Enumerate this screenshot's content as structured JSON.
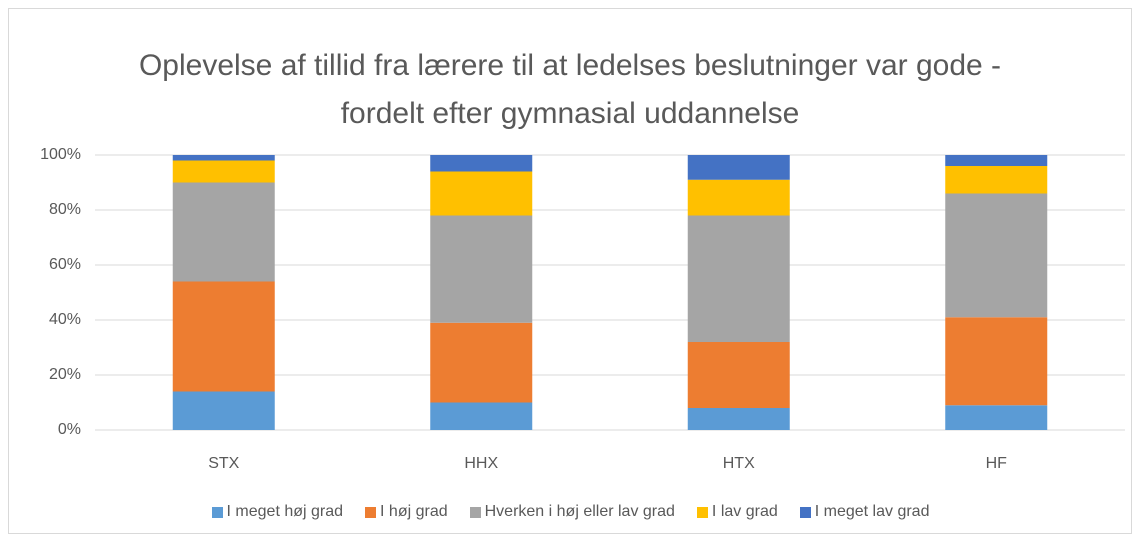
{
  "chart_data": {
    "type": "bar",
    "stacked": true,
    "title": "Oplevelse af tillid fra lærere til at ledelses beslutninger var gode - fordelt efter gymnasial uddannelse",
    "categories": [
      "STX",
      "HHX",
      "HTX",
      "HF"
    ],
    "series": [
      {
        "name": "I meget høj grad",
        "color": "#5b9bd5",
        "values": [
          14,
          10,
          8,
          9
        ]
      },
      {
        "name": "I høj grad",
        "color": "#ed7d31",
        "values": [
          40,
          29,
          24,
          32
        ]
      },
      {
        "name": "Hverken i høj eller lav grad",
        "color": "#a5a5a5",
        "values": [
          36,
          39,
          46,
          45
        ]
      },
      {
        "name": "I lav grad",
        "color": "#ffc000",
        "values": [
          8,
          16,
          13,
          10
        ]
      },
      {
        "name": "I meget lav grad",
        "color": "#4472c4",
        "values": [
          2,
          6,
          9,
          4
        ]
      }
    ],
    "ylim": [
      0,
      100
    ],
    "yticks": [
      {
        "value": 0,
        "label": "0%"
      },
      {
        "value": 20,
        "label": "20%"
      },
      {
        "value": 40,
        "label": "40%"
      },
      {
        "value": 60,
        "label": "60%"
      },
      {
        "value": 80,
        "label": "80%"
      },
      {
        "value": 100,
        "label": "100%"
      }
    ],
    "grid": true,
    "legend": "bottom"
  }
}
